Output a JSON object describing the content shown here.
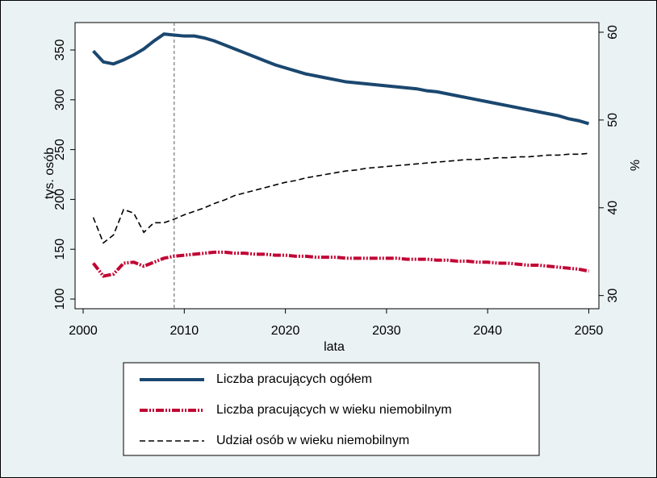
{
  "chart_data": {
    "type": "line",
    "x": [
      2001,
      2002,
      2003,
      2004,
      2005,
      2006,
      2007,
      2008,
      2009,
      2010,
      2011,
      2012,
      2013,
      2014,
      2015,
      2016,
      2017,
      2018,
      2019,
      2020,
      2021,
      2022,
      2023,
      2024,
      2025,
      2026,
      2027,
      2028,
      2029,
      2030,
      2031,
      2032,
      2033,
      2034,
      2035,
      2036,
      2037,
      2038,
      2039,
      2040,
      2041,
      2042,
      2043,
      2044,
      2045,
      2046,
      2047,
      2048,
      2049,
      2050
    ],
    "series": [
      {
        "name": "Liczba pracujących ogółem",
        "color": "#1a476f",
        "style": "solid",
        "values": [
          349,
          338,
          336,
          340,
          345,
          351,
          359,
          366,
          365,
          364,
          364,
          362,
          359,
          355,
          351,
          347,
          343,
          339,
          335,
          332,
          329,
          326,
          324,
          322,
          320,
          318,
          317,
          316,
          315,
          314,
          313,
          312,
          311,
          309,
          308,
          306,
          304,
          302,
          300,
          298,
          296,
          294,
          292,
          290,
          288,
          286,
          284,
          281,
          279,
          276
        ]
      },
      {
        "name": "Liczba pracujących w wieku niemobilnym",
        "color": "#c10534",
        "style": "dash-dot",
        "values": [
          136,
          123,
          125,
          136,
          137,
          133,
          137,
          141,
          143,
          144,
          145,
          146,
          147,
          147,
          146,
          146,
          145,
          145,
          144,
          144,
          143,
          143,
          142,
          142,
          142,
          141,
          141,
          141,
          141,
          141,
          141,
          140,
          140,
          140,
          139,
          139,
          138,
          138,
          137,
          137,
          136,
          136,
          135,
          134,
          134,
          133,
          132,
          131,
          130,
          128
        ]
      },
      {
        "name": "Udział osób w wieku niemobilnym",
        "color": "#000000",
        "style": "dash",
        "axis": "y2",
        "values": [
          38.9,
          36.0,
          36.9,
          39.8,
          39.4,
          37.2,
          38.3,
          38.3,
          38.7,
          39.2,
          39.6,
          40.0,
          40.5,
          40.9,
          41.4,
          41.7,
          42.0,
          42.3,
          42.6,
          42.9,
          43.1,
          43.4,
          43.6,
          43.8,
          44.0,
          44.2,
          44.3,
          44.5,
          44.6,
          44.7,
          44.8,
          44.9,
          45.0,
          45.1,
          45.2,
          45.3,
          45.4,
          45.5,
          45.5,
          45.6,
          45.7,
          45.7,
          45.8,
          45.8,
          45.9,
          46.0,
          46.0,
          46.1,
          46.1,
          46.2
        ]
      }
    ],
    "xlabel": "lata",
    "ylabel": "tys. osób",
    "y2label": "%",
    "xlim": [
      1999.2,
      2051
    ],
    "xticks": [
      2000,
      2010,
      2020,
      2030,
      2040,
      2050
    ],
    "ylim": [
      90.3,
      377.5
    ],
    "yticks": [
      100,
      150,
      200,
      250,
      300,
      350
    ],
    "y2lim": [
      28.5,
      61.1
    ],
    "y2ticks": [
      30,
      40,
      50,
      60
    ],
    "xline": 2009,
    "legend": "bottom"
  }
}
